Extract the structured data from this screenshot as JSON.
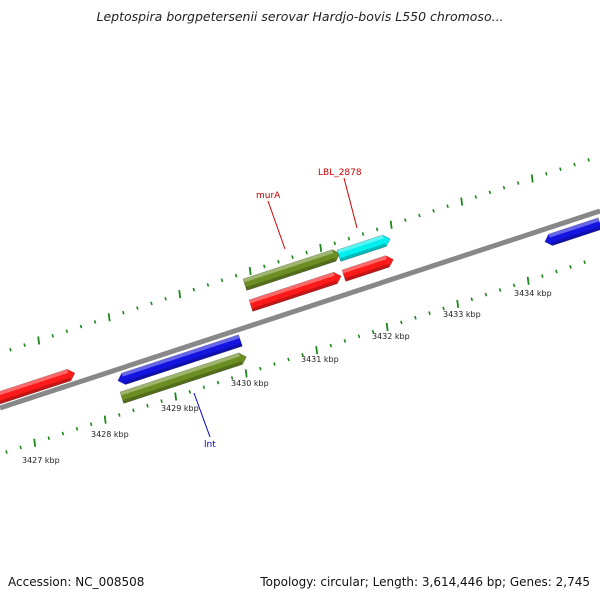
{
  "title": "Leptospira borgpetersenii serovar Hardjo-bovis L550 chromoso...",
  "footer": {
    "accession": "Accession: NC_008508",
    "summary": "Topology: circular; Length: 3,614,446 bp; Genes: 2,745"
  },
  "colors": {
    "red": "#ff1a1a",
    "blue": "#1414e0",
    "olive": "#6b8e23",
    "cyan": "#00f0f0",
    "backbone": "#888888",
    "tick": "#1a8a1a"
  },
  "scale": {
    "labels": [
      "3427 kbp",
      "3428 kbp",
      "3429 kbp",
      "3430 kbp",
      "3431 kbp",
      "3432 kbp",
      "3433 kbp",
      "3434 kbp"
    ]
  },
  "gene_labels": [
    {
      "text": "murA",
      "color": "#cc0000"
    },
    {
      "text": "LBL_2878",
      "color": "#cc0000"
    },
    {
      "text": "lnt",
      "color": "#0000cc"
    }
  ]
}
